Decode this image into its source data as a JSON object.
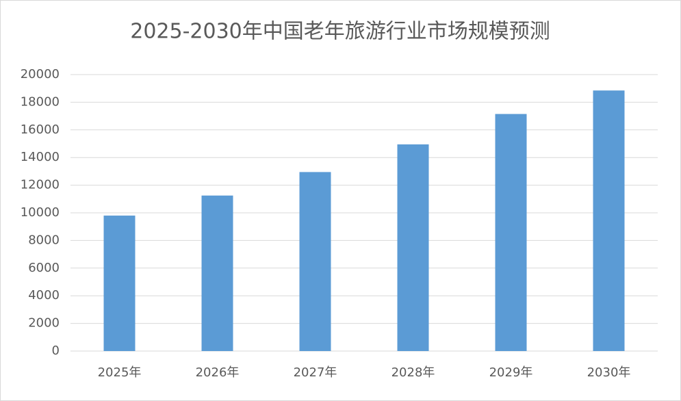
{
  "chart_data": {
    "type": "bar",
    "title": "2025-2030年中国老年旅游行业市场规模预测",
    "categories": [
      "2025年",
      "2026年",
      "2027年",
      "2028年",
      "2029年",
      "2030年"
    ],
    "values": [
      9800,
      11250,
      12950,
      14950,
      17150,
      18850
    ],
    "color": "#5b9bd5",
    "ylim": [
      0,
      20000
    ],
    "yticks": [
      0,
      2000,
      4000,
      6000,
      8000,
      10000,
      12000,
      14000,
      16000,
      18000,
      20000
    ],
    "grid": true
  }
}
